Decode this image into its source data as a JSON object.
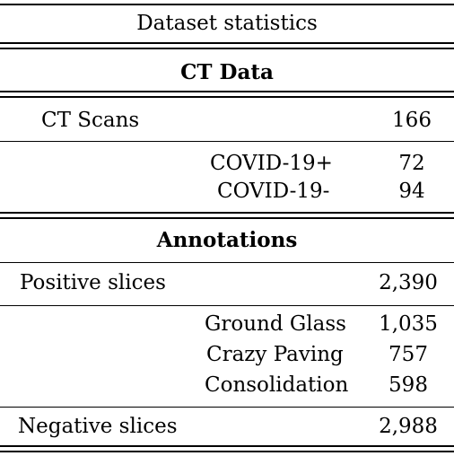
{
  "caption": "Dataset statistics",
  "sections": {
    "ct": {
      "heading": "CT Data",
      "total": {
        "label": "CT Scans",
        "value": "166"
      },
      "breakdown": [
        {
          "label": "COVID-19+",
          "value": "72"
        },
        {
          "label": "COVID-19-",
          "value": "94"
        }
      ]
    },
    "annotations": {
      "heading": "Annotations",
      "positive": {
        "label": "Positive slices",
        "value": "2,390"
      },
      "breakdown": [
        {
          "label": "Ground Glass",
          "value": "1,035"
        },
        {
          "label": "Crazy Paving",
          "value": "757"
        },
        {
          "label": "Consolidation",
          "value": "598"
        }
      ],
      "negative": {
        "label": "Negative slices",
        "value": "2,988"
      }
    }
  }
}
